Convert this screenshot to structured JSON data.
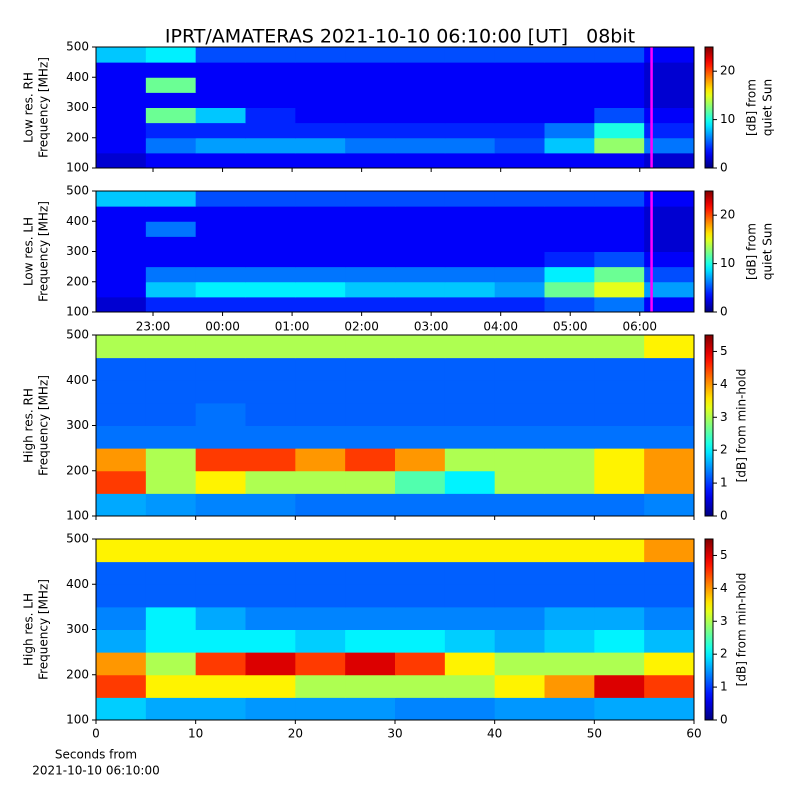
{
  "title": "IPRT/AMATERAS 2021-10-10 06:10:00 [UT]   08bit",
  "chart_data": [
    {
      "type": "heatmap",
      "ylabel": [
        "Low res. RH",
        "Frequency [MHz]"
      ],
      "colorbar_label": [
        "[dB] from",
        "quiet Sun"
      ],
      "xlim": [
        22.18,
        30.78
      ],
      "xticks": [
        23,
        24,
        25,
        26,
        27,
        28,
        29,
        30
      ],
      "show_xtick_labels": false,
      "ylim": [
        100,
        500
      ],
      "yticks": [
        100,
        200,
        300,
        400,
        500
      ],
      "clim": [
        0,
        25
      ],
      "cticks": [
        0,
        10,
        20
      ],
      "colormap": "jet",
      "marker_x": 30.17,
      "marker_color": "#ff00ff",
      "z": [
        [
          2,
          3,
          3,
          3,
          3,
          3,
          3,
          3,
          3,
          3,
          3,
          2
        ],
        [
          3,
          6,
          7,
          7,
          7,
          6,
          6,
          6,
          5,
          8,
          13,
          6
        ],
        [
          3,
          4,
          4,
          4,
          4,
          4,
          4,
          4,
          4,
          6,
          10,
          4
        ],
        [
          3,
          12,
          8,
          4,
          3,
          3,
          3,
          3,
          3,
          3,
          5,
          3
        ],
        [
          3,
          3,
          3,
          3,
          3,
          3,
          3,
          3,
          3,
          3,
          3,
          2
        ],
        [
          3,
          12,
          3,
          3,
          3,
          3,
          3,
          3,
          3,
          3,
          3,
          2
        ],
        [
          3,
          3,
          3,
          3,
          3,
          3,
          3,
          3,
          3,
          3,
          3,
          2
        ],
        [
          8,
          9,
          5,
          5,
          5,
          5,
          5,
          5,
          5,
          5,
          5,
          3
        ]
      ]
    },
    {
      "type": "heatmap",
      "ylabel": [
        "Low res. LH",
        "Frequency [MHz]"
      ],
      "colorbar_label": [
        "[dB] from",
        "quiet Sun"
      ],
      "xlim": [
        22.18,
        30.78
      ],
      "xticks": [
        {
          "value": 23,
          "label": "23:00"
        },
        {
          "value": 24,
          "label": "00:00"
        },
        {
          "value": 25,
          "label": "01:00"
        },
        {
          "value": 26,
          "label": "02:00"
        },
        {
          "value": 27,
          "label": "03:00"
        },
        {
          "value": 28,
          "label": "04:00"
        },
        {
          "value": 29,
          "label": "05:00"
        },
        {
          "value": 30,
          "label": "06:00"
        }
      ],
      "show_xtick_labels": true,
      "xtick_labels_above": true,
      "ylim": [
        100,
        500
      ],
      "yticks": [
        100,
        200,
        300,
        400,
        500
      ],
      "clim": [
        0,
        25
      ],
      "cticks": [
        0,
        10,
        20
      ],
      "colormap": "jet",
      "marker_x": 30.17,
      "marker_color": "#ff00ff",
      "z": [
        [
          2,
          4,
          4,
          4,
          4,
          4,
          4,
          4,
          4,
          5,
          6,
          3
        ],
        [
          3,
          8,
          9,
          9,
          9,
          8,
          8,
          8,
          7,
          12,
          15,
          7
        ],
        [
          3,
          6,
          6,
          6,
          6,
          6,
          6,
          6,
          6,
          9,
          12,
          5
        ],
        [
          3,
          3,
          3,
          3,
          3,
          3,
          3,
          3,
          3,
          4,
          5,
          3
        ],
        [
          3,
          3,
          3,
          3,
          3,
          3,
          3,
          3,
          3,
          3,
          3,
          2
        ],
        [
          3,
          6,
          3,
          3,
          3,
          3,
          3,
          3,
          3,
          3,
          3,
          2
        ],
        [
          3,
          3,
          3,
          3,
          3,
          3,
          3,
          3,
          3,
          3,
          3,
          2
        ],
        [
          8,
          8,
          5,
          5,
          5,
          5,
          5,
          5,
          5,
          5,
          5,
          3
        ]
      ]
    },
    {
      "type": "heatmap",
      "ylabel": [
        "High res. RH",
        "Frequency [MHz]"
      ],
      "colorbar_label": [
        "[dB] from min-hold"
      ],
      "xlim": [
        0,
        60
      ],
      "xticks": [
        0,
        10,
        20,
        30,
        40,
        50,
        60
      ],
      "show_xtick_labels": false,
      "ylim": [
        100,
        500
      ],
      "yticks": [
        100,
        200,
        300,
        400,
        500
      ],
      "clim": [
        0,
        5.5
      ],
      "cticks": [
        0,
        1,
        2,
        3,
        4,
        5
      ],
      "colormap": "jet",
      "z": [
        [
          1.6,
          1.5,
          1.4,
          1.4,
          1.3,
          1.3,
          1.3,
          1.3,
          1.3,
          1.3,
          1.3,
          1.4
        ],
        [
          4.5,
          3,
          3.5,
          3,
          3,
          3,
          2.5,
          2,
          3,
          3,
          3.5,
          4
        ],
        [
          4,
          3,
          4.5,
          4.5,
          4,
          4.5,
          4,
          3,
          3,
          3,
          3.5,
          4
        ],
        [
          1.3,
          1.3,
          1.3,
          1.3,
          1.3,
          1.3,
          1.3,
          1.3,
          1.3,
          1.3,
          1.3,
          1.3
        ],
        [
          1.2,
          1.2,
          1.3,
          1.2,
          1.2,
          1.2,
          1.2,
          1.2,
          1.2,
          1.2,
          1.2,
          1.2
        ],
        [
          1.2,
          1.2,
          1.2,
          1.2,
          1.2,
          1.2,
          1.2,
          1.2,
          1.2,
          1.2,
          1.2,
          1.2
        ],
        [
          1.2,
          1.2,
          1.2,
          1.2,
          1.2,
          1.2,
          1.2,
          1.2,
          1.2,
          1.2,
          1.2,
          1.2
        ],
        [
          3,
          3,
          3,
          3,
          3,
          3,
          3,
          3,
          3,
          3,
          3,
          3.5
        ]
      ]
    },
    {
      "type": "heatmap",
      "ylabel": [
        "High res. LH",
        "Frequency [MHz]"
      ],
      "colorbar_label": [
        "[dB] from min-hold"
      ],
      "xlim": [
        0,
        60
      ],
      "xticks": [
        0,
        10,
        20,
        30,
        40,
        50,
        60
      ],
      "show_xtick_labels": true,
      "xlabel": [
        "Seconds from",
        "2021-10-10 06:10:00"
      ],
      "ylim": [
        100,
        500
      ],
      "yticks": [
        100,
        200,
        300,
        400,
        500
      ],
      "clim": [
        0,
        5.5
      ],
      "cticks": [
        0,
        1,
        2,
        3,
        4,
        5
      ],
      "colormap": "jet",
      "z": [
        [
          1.8,
          1.6,
          1.6,
          1.5,
          1.5,
          1.5,
          1.4,
          1.4,
          1.5,
          1.5,
          1.6,
          1.6
        ],
        [
          4.5,
          3.5,
          3.5,
          3.5,
          3,
          3,
          3,
          3,
          3.5,
          4,
          5,
          4.5
        ],
        [
          4,
          3,
          4.5,
          5,
          4.5,
          5,
          4.5,
          3.5,
          3,
          3,
          3,
          3.5
        ],
        [
          1.6,
          2,
          2,
          2,
          1.8,
          2,
          2,
          1.8,
          1.6,
          1.8,
          2,
          1.7
        ],
        [
          1.4,
          2,
          1.6,
          1.4,
          1.4,
          1.4,
          1.4,
          1.4,
          1.4,
          1.6,
          1.6,
          1.4
        ],
        [
          1.2,
          1.2,
          1.2,
          1.2,
          1.2,
          1.2,
          1.2,
          1.2,
          1.2,
          1.2,
          1.2,
          1.2
        ],
        [
          1.2,
          1.2,
          1.2,
          1.2,
          1.2,
          1.2,
          1.2,
          1.2,
          1.2,
          1.2,
          1.2,
          1.2
        ],
        [
          3.5,
          3.5,
          3.5,
          3.5,
          3.5,
          3.5,
          3.5,
          3.5,
          3.5,
          3.5,
          3.5,
          4
        ]
      ]
    }
  ]
}
